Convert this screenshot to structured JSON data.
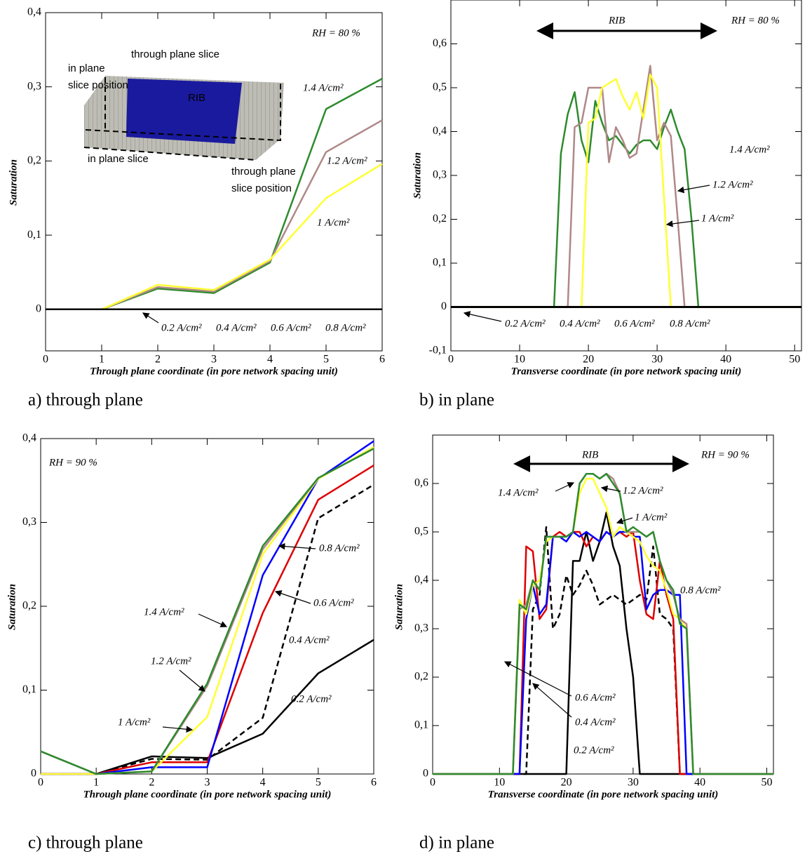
{
  "chart_data": [
    {
      "type": "line",
      "caption": "a)  through plane",
      "xlabel": "Through plane coordinate (in pore network spacing unit)",
      "ylabel": "Saturation",
      "annotations": [
        "RH = 80 %"
      ],
      "inset_labels": [
        "through plane slice",
        "in plane",
        "slice position",
        "in plane slice",
        "through plane",
        "slice position",
        "RIB"
      ],
      "x": [
        0,
        1,
        2,
        3,
        4,
        5,
        6
      ],
      "xlim": [
        0,
        6
      ],
      "xticks": [
        0,
        1,
        2,
        3,
        4,
        5,
        6
      ],
      "ylim": [
        -0.056,
        0.4
      ],
      "yticks": [
        0,
        {
          "value": 0.1,
          "label": "0,1"
        },
        {
          "value": 0.2,
          "label": "0,2"
        },
        {
          "value": 0.3,
          "label": "0,3"
        },
        {
          "value": 0.4,
          "label": "0,4"
        }
      ],
      "series": [
        {
          "name": "1.4 A/cm²",
          "color": "#2e8b2e",
          "values": [
            0,
            0,
            0.028,
            0.022,
            0.063,
            0.27,
            0.311
          ]
        },
        {
          "name": "1.2 A/cm²",
          "color": "#b08888",
          "values": [
            0,
            0,
            0.03,
            0.024,
            0.065,
            0.212,
            0.255
          ]
        },
        {
          "name": "1 A/cm²",
          "color": "#ffff33",
          "values": [
            0,
            0,
            0.033,
            0.026,
            0.067,
            0.15,
            0.196
          ]
        },
        {
          "name": "0.2 A/cm²",
          "color": "#000000",
          "values": [
            0,
            0,
            0,
            0,
            0,
            0,
            0
          ]
        },
        {
          "name": "0.4 A/cm²",
          "color": "#000000",
          "values": [
            0,
            0,
            0,
            0,
            0,
            0,
            0
          ]
        },
        {
          "name": "0.6 A/cm²",
          "color": "#000000",
          "values": [
            0,
            0,
            0,
            0,
            0,
            0,
            0
          ]
        },
        {
          "name": "0.8 A/cm²",
          "color": "#000000",
          "values": [
            0,
            0,
            0,
            0,
            0,
            0,
            0
          ]
        }
      ]
    },
    {
      "type": "line",
      "caption": "b) in plane",
      "xlabel": "Transverse coordinate (in pore network spacing unit)",
      "ylabel": "Saturation",
      "annotations": [
        "RIB",
        "RH = 80 %"
      ],
      "x": [
        0,
        14,
        15,
        16,
        17,
        18,
        19,
        20,
        21,
        22,
        23,
        24,
        25,
        26,
        27,
        28,
        29,
        30,
        31,
        32,
        33,
        34,
        35,
        36,
        37,
        51
      ],
      "xlim": [
        0,
        51
      ],
      "xticks": [
        0,
        10,
        20,
        30,
        40,
        50
      ],
      "ylim": [
        -0.1,
        0.7
      ],
      "yticks": [
        {
          "value": -0.1,
          "label": "-0,1"
        },
        0,
        {
          "value": 0.1,
          "label": "0,1"
        },
        {
          "value": 0.2,
          "label": "0,2"
        },
        {
          "value": 0.3,
          "label": "0,3"
        },
        {
          "value": 0.4,
          "label": "0,4"
        },
        {
          "value": 0.5,
          "label": "0,5"
        },
        {
          "value": 0.6,
          "label": "0,6"
        }
      ],
      "series": [
        {
          "name": "1.4 A/cm²",
          "color": "#2e8b2e",
          "values": [
            0,
            0,
            0,
            0.35,
            0.44,
            0.49,
            0.38,
            0.33,
            0.47,
            0.42,
            0.38,
            0.39,
            0.37,
            0.35,
            0.37,
            0.38,
            0.38,
            0.36,
            0.41,
            0.45,
            0.4,
            0.36,
            0.2,
            0,
            0,
            0
          ]
        },
        {
          "name": "1.2 A/cm²",
          "color": "#b08888",
          "values": [
            0,
            0,
            0,
            0,
            0,
            0.41,
            0.42,
            0.5,
            0.5,
            0.5,
            0.33,
            0.41,
            0.38,
            0.34,
            0.35,
            0.45,
            0.55,
            0.38,
            0.42,
            0.39,
            0.2,
            0,
            0,
            0,
            0,
            0
          ]
        },
        {
          "name": "1 A/cm²",
          "color": "#ffff33",
          "values": [
            0,
            0,
            0,
            0,
            0,
            0,
            0,
            0.42,
            0.43,
            0.5,
            0.51,
            0.52,
            0.48,
            0.45,
            0.49,
            0.43,
            0.53,
            0.5,
            0.25,
            0,
            0,
            0,
            0,
            0,
            0,
            0
          ]
        },
        {
          "name": "0.2 A/cm²",
          "color": "#000000",
          "values": [
            0,
            0,
            0,
            0,
            0,
            0,
            0,
            0,
            0,
            0,
            0,
            0,
            0,
            0,
            0,
            0,
            0,
            0,
            0,
            0,
            0,
            0,
            0,
            0,
            0,
            0
          ]
        },
        {
          "name": "0.4 A/cm²",
          "color": "#000000",
          "values": [
            0,
            0,
            0,
            0,
            0,
            0,
            0,
            0,
            0,
            0,
            0,
            0,
            0,
            0,
            0,
            0,
            0,
            0,
            0,
            0,
            0,
            0,
            0,
            0,
            0,
            0
          ]
        },
        {
          "name": "0.6 A/cm²",
          "color": "#000000",
          "values": [
            0,
            0,
            0,
            0,
            0,
            0,
            0,
            0,
            0,
            0,
            0,
            0,
            0,
            0,
            0,
            0,
            0,
            0,
            0,
            0,
            0,
            0,
            0,
            0,
            0,
            0
          ]
        },
        {
          "name": "0.8 A/cm²",
          "color": "#000000",
          "values": [
            0,
            0,
            0,
            0,
            0,
            0,
            0,
            0,
            0,
            0,
            0,
            0,
            0,
            0,
            0,
            0,
            0,
            0,
            0,
            0,
            0,
            0,
            0,
            0,
            0,
            0
          ]
        }
      ]
    },
    {
      "type": "line",
      "caption": "c)  through plane",
      "xlabel": "Through plane coordinate (in pore network spacing unit)",
      "ylabel": "Saturation",
      "annotations": [
        "RH = 90 %"
      ],
      "x": [
        0,
        1,
        2,
        3,
        4,
        5,
        6
      ],
      "xlim": [
        0,
        6
      ],
      "xticks": [
        0,
        1,
        2,
        3,
        4,
        5,
        6
      ],
      "ylim": [
        0,
        0.4
      ],
      "yticks": [
        0,
        {
          "value": 0.1,
          "label": "0,1"
        },
        {
          "value": 0.2,
          "label": "0,2"
        },
        {
          "value": 0.3,
          "label": "0,3"
        },
        {
          "value": 0.4,
          "label": "0,4"
        }
      ],
      "series": [
        {
          "name": "0.2 A/cm²",
          "color": "#000000",
          "values": [
            0,
            0,
            0.021,
            0.019,
            0.048,
            0.12,
            0.16
          ]
        },
        {
          "name": "0.4 A/cm²",
          "color": "#000000",
          "dash": true,
          "values": [
            0,
            0,
            0.018,
            0.017,
            0.067,
            0.305,
            0.345
          ]
        },
        {
          "name": "0.6 A/cm²",
          "color": "#dd0000",
          "values": [
            0,
            0,
            0.014,
            0.014,
            0.192,
            0.327,
            0.368
          ]
        },
        {
          "name": "0.8 A/cm²",
          "color": "#0000ff",
          "values": [
            0,
            0,
            0.008,
            0.008,
            0.237,
            0.352,
            0.397
          ]
        },
        {
          "name": "1 A/cm²",
          "color": "#ffff33",
          "values": [
            0,
            0,
            0.003,
            0.068,
            0.262,
            0.352,
            0.39
          ]
        },
        {
          "name": "1.2 A/cm²",
          "color": "#b08888",
          "values": [
            0.027,
            0,
            0.003,
            0.105,
            0.268,
            0.353,
            0.388
          ]
        },
        {
          "name": "1.4 A/cm²",
          "color": "#2e8b2e",
          "values": [
            0.027,
            0,
            0.003,
            0.108,
            0.272,
            0.353,
            0.388
          ]
        }
      ]
    },
    {
      "type": "line",
      "caption": "d) in plane",
      "xlabel": "Transverse coordinate (in pore network spacing unit)",
      "ylabel": "Saturation",
      "annotations": [
        "RIB",
        "RH = 90 %"
      ],
      "x": [
        0,
        11,
        12,
        13,
        14,
        15,
        16,
        17,
        18,
        19,
        20,
        21,
        22,
        23,
        24,
        25,
        26,
        27,
        28,
        29,
        30,
        31,
        32,
        33,
        34,
        35,
        36,
        37,
        38,
        39,
        40,
        51
      ],
      "xlim": [
        0,
        51
      ],
      "xticks": [
        0,
        10,
        20,
        30,
        40,
        50
      ],
      "ylim": [
        0,
        0.7
      ],
      "yticks": [
        0,
        {
          "value": 0.1,
          "label": "0,1"
        },
        {
          "value": 0.2,
          "label": "0,2"
        },
        {
          "value": 0.3,
          "label": "0,3"
        },
        {
          "value": 0.4,
          "label": "0,4"
        },
        {
          "value": 0.5,
          "label": "0,5"
        },
        {
          "value": 0.6,
          "label": "0,6"
        }
      ],
      "series": [
        {
          "name": "0.2 A/cm²",
          "color": "#000000",
          "values": [
            0,
            0,
            0,
            0,
            0,
            0,
            0,
            0,
            0,
            0,
            0,
            0.44,
            0.44,
            0.5,
            0.44,
            0.48,
            0.54,
            0.47,
            0.43,
            0.3,
            0.2,
            0,
            0,
            0,
            0,
            0,
            0,
            0,
            0,
            0,
            0,
            0
          ]
        },
        {
          "name": "0.4 A/cm²",
          "color": "#000000",
          "dash": true,
          "values": [
            0,
            0,
            0,
            0,
            0,
            0.34,
            0.37,
            0.51,
            0.3,
            0.33,
            0.41,
            0.37,
            0.39,
            0.42,
            0.39,
            0.35,
            0.36,
            0.37,
            0.36,
            0.35,
            0.36,
            0.37,
            0.36,
            0.47,
            0.33,
            0.32,
            0.3,
            0,
            0,
            0,
            0,
            0
          ]
        },
        {
          "name": "0.6 A/cm²",
          "color": "#dd0000",
          "values": [
            0,
            0,
            0,
            0,
            0.47,
            0.46,
            0.32,
            0.34,
            0.49,
            0.5,
            0.49,
            0.5,
            0.5,
            0.47,
            0.49,
            0.48,
            0.5,
            0.49,
            0.5,
            0.49,
            0.5,
            0.4,
            0.33,
            0.32,
            0.44,
            0.37,
            0.32,
            0,
            0,
            0,
            0,
            0
          ]
        },
        {
          "name": "0.8 A/cm²",
          "color": "#0000ff",
          "values": [
            0,
            0,
            0,
            0,
            0.32,
            0.39,
            0.33,
            0.35,
            0.49,
            0.49,
            0.48,
            0.5,
            0.49,
            0.5,
            0.49,
            0.48,
            0.5,
            0.49,
            0.5,
            0.5,
            0.49,
            0.49,
            0.34,
            0.37,
            0.38,
            0.38,
            0.37,
            0.37,
            0,
            0,
            0,
            0
          ]
        },
        {
          "name": "1 A/cm²",
          "color": "#ffff33",
          "values": [
            0,
            0,
            0,
            0.36,
            0.33,
            0.39,
            0.4,
            0.48,
            0.49,
            0.49,
            0.49,
            0.5,
            0.58,
            0.61,
            0.61,
            0.58,
            0.55,
            0.49,
            0.51,
            0.5,
            0.49,
            0.48,
            0.45,
            0.43,
            0.42,
            0.38,
            0.33,
            0.32,
            0.3,
            0,
            0,
            0
          ]
        },
        {
          "name": "1.2 A/cm²",
          "color": "#b08888",
          "values": [
            0,
            0,
            0,
            0.34,
            0.35,
            0.4,
            0.38,
            0.49,
            0.49,
            0.49,
            0.49,
            0.5,
            0.6,
            0.62,
            0.62,
            0.61,
            0.62,
            0.61,
            0.58,
            0.5,
            0.5,
            0.5,
            0.49,
            0.5,
            0.44,
            0.4,
            0.37,
            0.32,
            0.31,
            0,
            0,
            0
          ]
        },
        {
          "name": "1.4 A/cm²",
          "color": "#2e8b2e",
          "values": [
            0,
            0,
            0,
            0.35,
            0.34,
            0.4,
            0.38,
            0.49,
            0.49,
            0.49,
            0.49,
            0.5,
            0.6,
            0.62,
            0.62,
            0.61,
            0.62,
            0.6,
            0.58,
            0.5,
            0.51,
            0.5,
            0.49,
            0.5,
            0.44,
            0.4,
            0.38,
            0.31,
            0.3,
            0,
            0,
            0
          ]
        }
      ]
    }
  ]
}
